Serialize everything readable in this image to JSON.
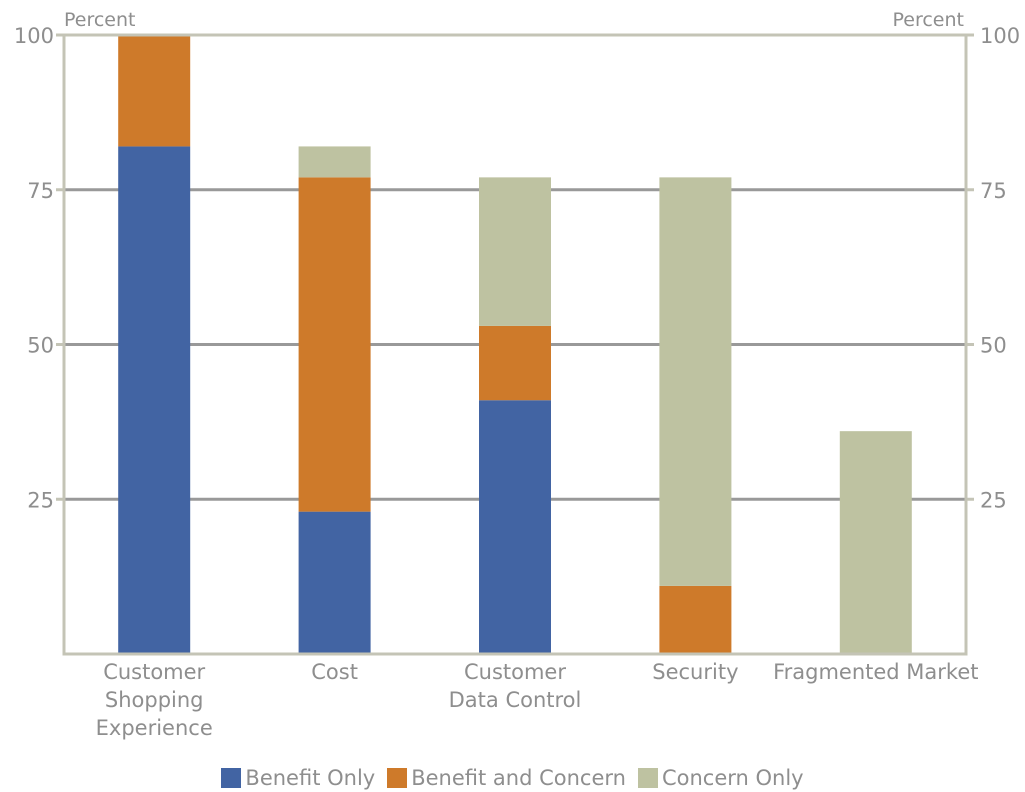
{
  "chart_data": {
    "type": "bar",
    "stacked": true,
    "categories": [
      "Customer Shopping Experience",
      "Cost",
      "Customer Data Control",
      "Security",
      "Fragmented Market"
    ],
    "category_label_lines": [
      [
        "Customer",
        "Shopping",
        "Experience"
      ],
      [
        "Cost"
      ],
      [
        "Customer",
        "Data Control"
      ],
      [
        "Security"
      ],
      [
        "Fragmented Market"
      ]
    ],
    "series": [
      {
        "name": "Benefit Only",
        "color": "#4264a3",
        "values": [
          82,
          23,
          41,
          0,
          0
        ]
      },
      {
        "name": "Benefit and Concern",
        "color": "#ce7a2a",
        "values": [
          18,
          54,
          12,
          11,
          0
        ]
      },
      {
        "name": "Concern Only",
        "color": "#bec2a1",
        "values": [
          0,
          5,
          24,
          66,
          36
        ]
      }
    ],
    "ylabel_left": "Percent",
    "ylabel_right": "Percent",
    "ylim": [
      0,
      100
    ],
    "yticks": [
      25,
      50,
      75,
      100
    ],
    "grid": true,
    "legend_position": "bottom-center",
    "axis_color": "#c4c4b6",
    "grid_color": "#999999",
    "text_color": "#8e8e8e"
  }
}
